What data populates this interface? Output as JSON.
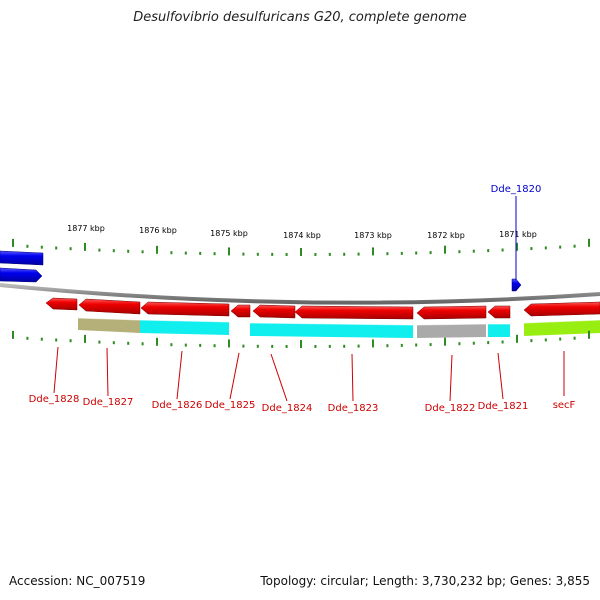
{
  "title": "Desulfovibrio desulfuricans G20, complete genome",
  "footer": {
    "accession": "Accession: NC_007519",
    "summary": "Topology: circular; Length: 3,730,232 bp; Genes: 3,855"
  },
  "colors": {
    "minus_strand_gene": "#ee0000",
    "plus_strand_gene": "#0000ee",
    "backbone": "#888888",
    "tick": "#2e8b22",
    "cog_olive": "#b5b07a",
    "cog_cyan": "#11eeee",
    "cog_gray": "#aaaaaa",
    "cog_green": "#99ee11"
  },
  "ruler": {
    "labels": [
      "1877 kbp",
      "1876 kbp",
      "1875 kbp",
      "1874 kbp",
      "1873 kbp",
      "1872 kbp",
      "1871 kbp"
    ]
  },
  "genes": {
    "plus": [
      "Dde_1820"
    ],
    "minus": [
      "Dde_1828",
      "Dde_1827",
      "Dde_1826",
      "Dde_1825",
      "Dde_1824",
      "Dde_1823",
      "Dde_1822",
      "Dde_1821",
      "secF"
    ]
  }
}
